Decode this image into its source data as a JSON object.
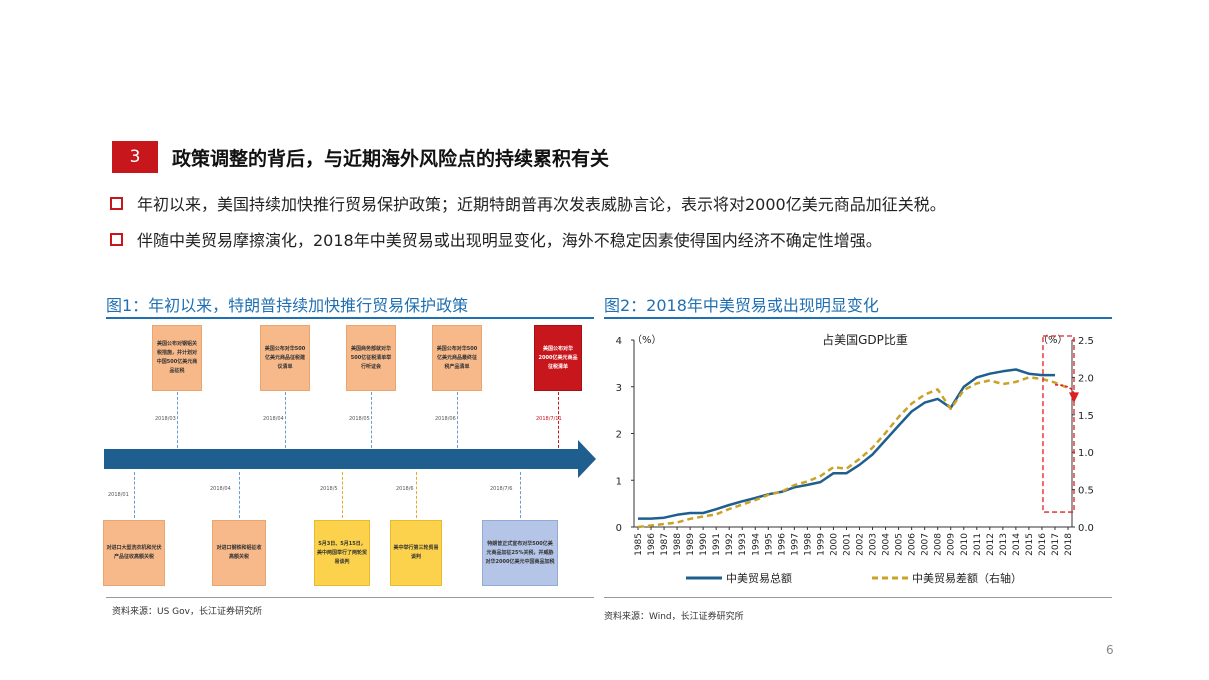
{
  "section": {
    "number": "3",
    "title": "政策调整的背后，与近期海外风险点的持续累积有关"
  },
  "bullets": [
    "年初以来，美国持续加快推行贸易保护政策；近期特朗普再次发表威胁言论，表示将对2000亿美元商品加征关税。",
    "伴随中美贸易摩擦演化，2018年中美贸易或出现明显变化，海外不稳定因素使得国内经济不确定性增强。"
  ],
  "figure1": {
    "title": "图1：年初以来，特朗普持续加快推行贸易保护政策",
    "source": "资料来源：US Gov，长江证券研究所",
    "top_events": [
      {
        "date": "2018/03",
        "text": "美国公布对钢铝关税措施，并计划对中国500亿美元商品征税",
        "style": "orange"
      },
      {
        "date": "2018/04",
        "text": "美国公布对华500亿美元商品征税建议清单",
        "style": "orange"
      },
      {
        "date": "2018/05",
        "text": "美国商务部就对华500亿征税清单举行听证会",
        "style": "orange"
      },
      {
        "date": "2018/06",
        "text": "美国公布对华500亿美元商品最终征税产品清单",
        "style": "orange"
      },
      {
        "date": "2018/7/11",
        "text": "美国公布对华2000亿美元商品征税清单",
        "style": "red"
      }
    ],
    "bottom_events": [
      {
        "date": "2018/01",
        "text": "对进口大型洗衣机和光伏产品征收高额关税",
        "style": "orange"
      },
      {
        "date": "2018/04",
        "text": "对进口钢铁和铝征收高额关税",
        "style": "orange"
      },
      {
        "date": "2018/5",
        "text": "5月3日、5月15日，美中两国举行了两轮贸易谈判",
        "style": "yellow"
      },
      {
        "date": "2018/6",
        "text": "美中举行第三轮贸易谈判",
        "style": "yellow"
      },
      {
        "date": "2018/7/6",
        "text": "特朗普正式宣布对华500亿美元商品加征25%关税，并威胁对华2000亿美元中国商品加税",
        "style": "blue"
      }
    ]
  },
  "figure2": {
    "title": "图2：2018年中美贸易或出现明显变化",
    "source": "资料来源：Wind，长江证券研究所"
  },
  "page_number": "6",
  "chart_data": {
    "type": "line",
    "title": "占美国GDP比重",
    "left_unit": "（%）",
    "right_unit": "（%）",
    "x": [
      1985,
      1986,
      1987,
      1988,
      1989,
      1990,
      1991,
      1992,
      1993,
      1994,
      1995,
      1996,
      1997,
      1998,
      1999,
      2000,
      2001,
      2002,
      2003,
      2004,
      2005,
      2006,
      2007,
      2008,
      2009,
      2010,
      2011,
      2012,
      2013,
      2014,
      2015,
      2016,
      2017,
      2018
    ],
    "ylim_left": [
      0,
      4
    ],
    "yticks_left": [
      "0",
      "1",
      "2",
      "3",
      "4"
    ],
    "ylim_right": [
      0,
      2.5
    ],
    "yticks_right": [
      "0.0",
      "0.5",
      "1.0",
      "1.5",
      "2.0",
      "2.5"
    ],
    "series": [
      {
        "name": "中美贸易总额",
        "axis": "left",
        "style": "solid",
        "color": "#1f5f8f",
        "values": [
          0.18,
          0.18,
          0.2,
          0.26,
          0.3,
          0.3,
          0.38,
          0.47,
          0.55,
          0.62,
          0.7,
          0.75,
          0.85,
          0.9,
          0.96,
          1.15,
          1.15,
          1.33,
          1.55,
          1.86,
          2.17,
          2.47,
          2.66,
          2.74,
          2.55,
          3.0,
          3.2,
          3.28,
          3.33,
          3.37,
          3.28,
          3.25,
          3.25,
          null
        ]
      },
      {
        "name": "中美贸易差额（右轴）",
        "axis": "right",
        "style": "dashed",
        "color": "#c9a227",
        "values": [
          0.0,
          0.02,
          0.04,
          0.06,
          0.11,
          0.14,
          0.17,
          0.24,
          0.3,
          0.36,
          0.43,
          0.47,
          0.56,
          0.61,
          0.68,
          0.8,
          0.78,
          0.91,
          1.06,
          1.26,
          1.47,
          1.65,
          1.77,
          1.84,
          1.58,
          1.83,
          1.92,
          1.96,
          1.91,
          1.94,
          2.0,
          1.98,
          1.93,
          1.86
        ]
      }
    ],
    "legend_position": "bottom",
    "highlight_box": {
      "from_year": 2017,
      "color": "#e02020",
      "style": "dashed"
    }
  }
}
